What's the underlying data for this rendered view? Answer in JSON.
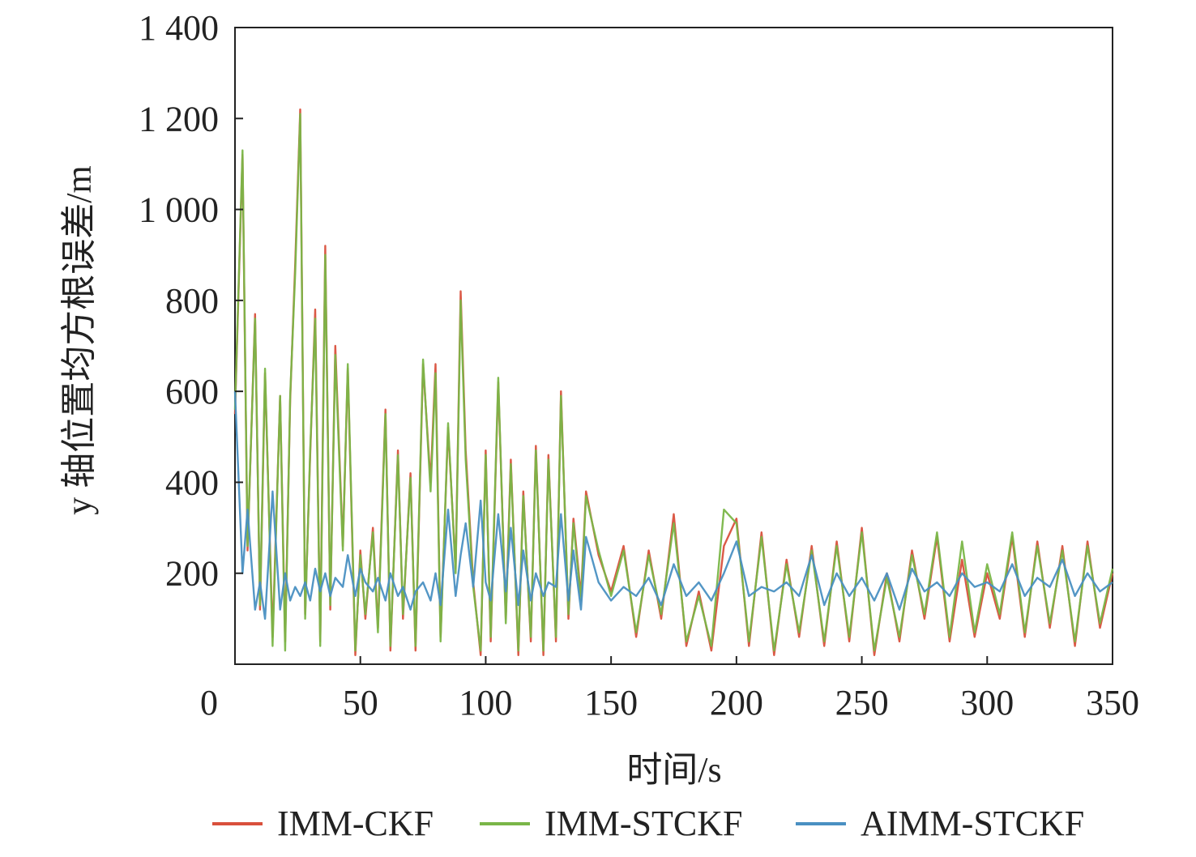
{
  "chart_data": {
    "type": "line",
    "title": "",
    "xlabel": "时间/s",
    "ylabel": "y 轴位置均方根误差/m",
    "xlim": [
      0,
      350
    ],
    "ylim": [
      0,
      1400
    ],
    "xticks": [
      0,
      50,
      100,
      150,
      200,
      250,
      300,
      350
    ],
    "yticks": [
      200,
      400,
      600,
      800,
      1000,
      1200,
      1400
    ],
    "xtick_labels": [
      "0",
      "50",
      "100",
      "150",
      "200",
      "250",
      "300",
      "350"
    ],
    "ytick_labels": [
      "200",
      "400",
      "600",
      "800",
      "1 000",
      "1 200",
      "1 400"
    ],
    "grid": false,
    "legend_position": "bottom",
    "series": [
      {
        "name": "IMM-CKF",
        "color": "#d9503c",
        "x": [
          0,
          3,
          5,
          8,
          10,
          12,
          15,
          18,
          20,
          22,
          24,
          26,
          28,
          30,
          32,
          34,
          36,
          38,
          40,
          43,
          45,
          48,
          50,
          52,
          55,
          57,
          60,
          62,
          65,
          67,
          70,
          72,
          75,
          78,
          80,
          82,
          85,
          88,
          90,
          92,
          95,
          98,
          100,
          102,
          105,
          108,
          110,
          113,
          115,
          118,
          120,
          123,
          125,
          128,
          130,
          133,
          135,
          138,
          140,
          145,
          150,
          155,
          160,
          165,
          170,
          175,
          180,
          185,
          190,
          195,
          200,
          205,
          210,
          215,
          220,
          225,
          230,
          235,
          240,
          245,
          250,
          255,
          260,
          265,
          270,
          275,
          280,
          285,
          290,
          295,
          300,
          305,
          310,
          315,
          320,
          325,
          330,
          335,
          340,
          345,
          350
        ],
        "values": [
          550,
          1120,
          250,
          770,
          120,
          640,
          60,
          590,
          50,
          580,
          880,
          1220,
          110,
          460,
          780,
          50,
          920,
          120,
          700,
          260,
          650,
          20,
          250,
          100,
          300,
          80,
          560,
          30,
          470,
          100,
          420,
          30,
          660,
          400,
          660,
          60,
          520,
          210,
          820,
          470,
          180,
          20,
          470,
          50,
          620,
          100,
          450,
          20,
          380,
          50,
          480,
          20,
          460,
          50,
          600,
          100,
          320,
          150,
          380,
          240,
          160,
          260,
          60,
          250,
          100,
          330,
          40,
          160,
          30,
          260,
          320,
          40,
          290,
          20,
          230,
          60,
          260,
          40,
          270,
          50,
          300,
          20,
          200,
          50,
          250,
          100,
          280,
          50,
          230,
          60,
          200,
          100,
          280,
          60,
          270,
          80,
          260,
          40,
          270,
          80,
          200
        ]
      },
      {
        "name": "IMM-STCKF",
        "color": "#7ab648",
        "x": [
          0,
          3,
          5,
          8,
          10,
          12,
          15,
          18,
          20,
          22,
          24,
          26,
          28,
          30,
          32,
          34,
          36,
          38,
          40,
          43,
          45,
          48,
          50,
          52,
          55,
          57,
          60,
          62,
          65,
          67,
          70,
          72,
          75,
          78,
          80,
          82,
          85,
          88,
          90,
          92,
          95,
          98,
          100,
          102,
          105,
          108,
          110,
          113,
          115,
          118,
          120,
          123,
          125,
          128,
          130,
          133,
          135,
          138,
          140,
          145,
          150,
          155,
          160,
          165,
          170,
          175,
          180,
          185,
          190,
          195,
          200,
          205,
          210,
          215,
          220,
          225,
          230,
          235,
          240,
          245,
          250,
          255,
          260,
          265,
          270,
          275,
          280,
          285,
          290,
          295,
          300,
          305,
          310,
          315,
          320,
          325,
          330,
          335,
          340,
          345,
          350
        ],
        "values": [
          560,
          1130,
          260,
          760,
          130,
          650,
          40,
          590,
          30,
          590,
          860,
          1210,
          100,
          470,
          760,
          40,
          900,
          130,
          680,
          250,
          660,
          30,
          240,
          110,
          290,
          70,
          550,
          40,
          460,
          110,
          410,
          40,
          670,
          380,
          640,
          50,
          530,
          200,
          800,
          450,
          170,
          30,
          460,
          60,
          630,
          90,
          440,
          30,
          370,
          60,
          470,
          30,
          450,
          60,
          590,
          110,
          310,
          140,
          370,
          250,
          150,
          250,
          70,
          240,
          110,
          310,
          50,
          150,
          40,
          340,
          310,
          50,
          280,
          30,
          220,
          70,
          250,
          50,
          260,
          60,
          290,
          30,
          190,
          60,
          240,
          110,
          290,
          60,
          270,
          70,
          220,
          110,
          290,
          70,
          260,
          90,
          250,
          50,
          260,
          90,
          210
        ]
      },
      {
        "name": "AIMM-STCKF",
        "color": "#4a90c2",
        "x": [
          0,
          3,
          5,
          8,
          10,
          12,
          15,
          18,
          20,
          22,
          24,
          26,
          28,
          30,
          32,
          34,
          36,
          38,
          40,
          43,
          45,
          48,
          50,
          52,
          55,
          57,
          60,
          62,
          65,
          67,
          70,
          72,
          75,
          78,
          80,
          82,
          85,
          88,
          90,
          92,
          95,
          98,
          100,
          102,
          105,
          108,
          110,
          113,
          115,
          118,
          120,
          123,
          125,
          128,
          130,
          133,
          135,
          138,
          140,
          145,
          150,
          155,
          160,
          165,
          170,
          175,
          180,
          185,
          190,
          195,
          200,
          205,
          210,
          215,
          220,
          225,
          230,
          235,
          240,
          245,
          250,
          255,
          260,
          265,
          270,
          275,
          280,
          285,
          290,
          295,
          300,
          305,
          310,
          315,
          320,
          325,
          330,
          335,
          340,
          345,
          350
        ],
        "values": [
          600,
          200,
          340,
          120,
          180,
          100,
          380,
          120,
          200,
          140,
          170,
          150,
          180,
          140,
          210,
          160,
          200,
          150,
          190,
          170,
          240,
          150,
          210,
          180,
          160,
          190,
          140,
          200,
          150,
          170,
          120,
          160,
          180,
          140,
          200,
          130,
          340,
          150,
          240,
          310,
          170,
          360,
          180,
          140,
          330,
          160,
          300,
          130,
          250,
          140,
          200,
          150,
          180,
          170,
          330,
          140,
          250,
          120,
          280,
          180,
          140,
          170,
          150,
          190,
          130,
          220,
          150,
          180,
          140,
          200,
          270,
          150,
          170,
          160,
          180,
          150,
          240,
          130,
          200,
          150,
          190,
          140,
          200,
          120,
          210,
          160,
          180,
          150,
          200,
          170,
          180,
          160,
          220,
          150,
          190,
          170,
          230,
          150,
          200,
          160,
          180
        ]
      }
    ]
  }
}
